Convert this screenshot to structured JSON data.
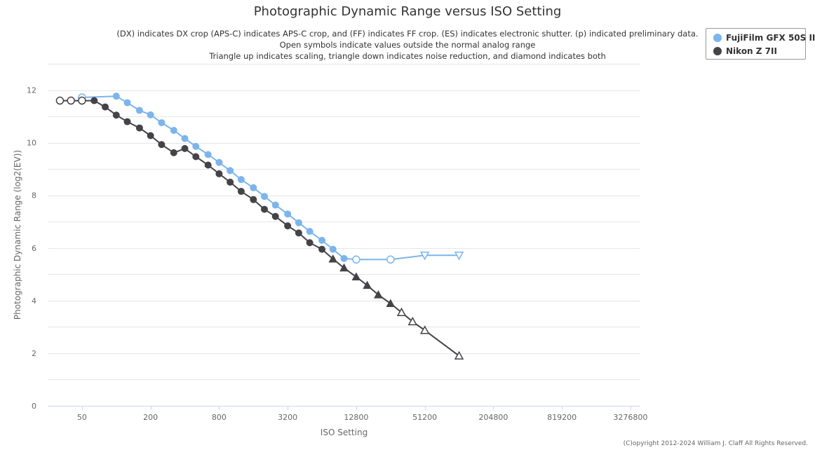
{
  "title": "Photographic Dynamic Range versus ISO Setting",
  "subtitles": [
    "(DX) indicates DX crop (APS-C) indicates APS-C crop, and (FF) indicates FF crop. (ES) indicates electronic shutter. (p) indicated preliminary data.",
    "Open symbols indicate values outside the normal analog range",
    "Triangle up indicates scaling, triangle down indicates noise reduction, and diamond indicates both"
  ],
  "copyright": "(C)opyright 2012-2024 William J. Claff All Rights Reserved.",
  "colors": {
    "fujifilm": "#7cb5ec",
    "nikon": "#434348",
    "grid": "#e6e6e6",
    "axis_text": "#666666"
  },
  "chart_data": {
    "type": "line",
    "title": "Photographic Dynamic Range versus ISO Setting",
    "xlabel": "ISO Setting",
    "ylabel": "Photographic Dynamic Range (log2(EV))",
    "x_scale": "log2",
    "xlim": [
      25,
      4000000
    ],
    "ylim": [
      0,
      13
    ],
    "x_ticks": [
      "50",
      "200",
      "800",
      "3200",
      "12800",
      "51200",
      "204800",
      "819200",
      "3276800"
    ],
    "x_tick_values": [
      50,
      200,
      800,
      3200,
      12800,
      51200,
      204800,
      819200,
      3276800
    ],
    "y_ticks": [
      "0",
      "2",
      "4",
      "6",
      "8",
      "10",
      "12"
    ],
    "y_tick_values": [
      0,
      2,
      4,
      6,
      8,
      10,
      12
    ],
    "grid": true,
    "legend_position": "top-right",
    "series": [
      {
        "name": "FujiFilm GFX 50S II",
        "color": "#7cb5ec",
        "points": [
          {
            "x": 50,
            "y": 11.72,
            "marker": "circle",
            "open": true
          },
          {
            "x": 100,
            "y": 11.77,
            "marker": "circle",
            "open": false
          },
          {
            "x": 125,
            "y": 11.52,
            "marker": "circle",
            "open": false
          },
          {
            "x": 160,
            "y": 11.23,
            "marker": "circle",
            "open": false
          },
          {
            "x": 200,
            "y": 11.06,
            "marker": "circle",
            "open": false
          },
          {
            "x": 250,
            "y": 10.76,
            "marker": "circle",
            "open": false
          },
          {
            "x": 320,
            "y": 10.47,
            "marker": "circle",
            "open": false
          },
          {
            "x": 400,
            "y": 10.16,
            "marker": "circle",
            "open": false
          },
          {
            "x": 500,
            "y": 9.86,
            "marker": "circle",
            "open": false
          },
          {
            "x": 640,
            "y": 9.55,
            "marker": "circle",
            "open": false
          },
          {
            "x": 800,
            "y": 9.25,
            "marker": "circle",
            "open": false
          },
          {
            "x": 1000,
            "y": 8.94,
            "marker": "circle",
            "open": false
          },
          {
            "x": 1250,
            "y": 8.6,
            "marker": "circle",
            "open": false
          },
          {
            "x": 1600,
            "y": 8.29,
            "marker": "circle",
            "open": false
          },
          {
            "x": 2000,
            "y": 7.96,
            "marker": "circle",
            "open": false
          },
          {
            "x": 2500,
            "y": 7.63,
            "marker": "circle",
            "open": false
          },
          {
            "x": 3200,
            "y": 7.29,
            "marker": "circle",
            "open": false
          },
          {
            "x": 4000,
            "y": 6.96,
            "marker": "circle",
            "open": false
          },
          {
            "x": 5000,
            "y": 6.63,
            "marker": "circle",
            "open": false
          },
          {
            "x": 6400,
            "y": 6.29,
            "marker": "circle",
            "open": false
          },
          {
            "x": 8000,
            "y": 5.95,
            "marker": "circle",
            "open": false
          },
          {
            "x": 10000,
            "y": 5.6,
            "marker": "circle",
            "open": false
          },
          {
            "x": 12800,
            "y": 5.56,
            "marker": "circle",
            "open": true
          },
          {
            "x": 25600,
            "y": 5.56,
            "marker": "circle",
            "open": true
          },
          {
            "x": 51200,
            "y": 5.72,
            "marker": "triangle-down",
            "open": true
          },
          {
            "x": 102400,
            "y": 5.72,
            "marker": "triangle-down",
            "open": true
          }
        ]
      },
      {
        "name": "Nikon Z 7II",
        "color": "#434348",
        "points": [
          {
            "x": 32,
            "y": 11.6,
            "marker": "circle",
            "open": true
          },
          {
            "x": 40,
            "y": 11.6,
            "marker": "circle",
            "open": true
          },
          {
            "x": 50,
            "y": 11.6,
            "marker": "circle",
            "open": true
          },
          {
            "x": 64,
            "y": 11.6,
            "marker": "circle",
            "open": false
          },
          {
            "x": 80,
            "y": 11.36,
            "marker": "circle",
            "open": false
          },
          {
            "x": 100,
            "y": 11.05,
            "marker": "circle",
            "open": false
          },
          {
            "x": 125,
            "y": 10.8,
            "marker": "circle",
            "open": false
          },
          {
            "x": 160,
            "y": 10.56,
            "marker": "circle",
            "open": false
          },
          {
            "x": 200,
            "y": 10.27,
            "marker": "circle",
            "open": false
          },
          {
            "x": 250,
            "y": 9.93,
            "marker": "circle",
            "open": false
          },
          {
            "x": 320,
            "y": 9.62,
            "marker": "circle",
            "open": false
          },
          {
            "x": 400,
            "y": 9.78,
            "marker": "circle",
            "open": false
          },
          {
            "x": 500,
            "y": 9.47,
            "marker": "circle",
            "open": false
          },
          {
            "x": 640,
            "y": 9.15,
            "marker": "circle",
            "open": false
          },
          {
            "x": 800,
            "y": 8.82,
            "marker": "circle",
            "open": false
          },
          {
            "x": 1000,
            "y": 8.5,
            "marker": "circle",
            "open": false
          },
          {
            "x": 1250,
            "y": 8.15,
            "marker": "circle",
            "open": false
          },
          {
            "x": 1600,
            "y": 7.84,
            "marker": "circle",
            "open": false
          },
          {
            "x": 2000,
            "y": 7.47,
            "marker": "circle",
            "open": false
          },
          {
            "x": 2500,
            "y": 7.2,
            "marker": "circle",
            "open": false
          },
          {
            "x": 3200,
            "y": 6.84,
            "marker": "circle",
            "open": false
          },
          {
            "x": 4000,
            "y": 6.57,
            "marker": "circle",
            "open": false
          },
          {
            "x": 5000,
            "y": 6.2,
            "marker": "circle",
            "open": false
          },
          {
            "x": 6400,
            "y": 5.95,
            "marker": "circle",
            "open": false
          },
          {
            "x": 8000,
            "y": 5.58,
            "marker": "triangle-up",
            "open": false
          },
          {
            "x": 10000,
            "y": 5.24,
            "marker": "triangle-up",
            "open": false
          },
          {
            "x": 12800,
            "y": 4.9,
            "marker": "triangle-up",
            "open": false
          },
          {
            "x": 16000,
            "y": 4.58,
            "marker": "triangle-up",
            "open": false
          },
          {
            "x": 20000,
            "y": 4.22,
            "marker": "triangle-up",
            "open": false
          },
          {
            "x": 25600,
            "y": 3.89,
            "marker": "triangle-up",
            "open": false
          },
          {
            "x": 32000,
            "y": 3.55,
            "marker": "triangle-up",
            "open": true
          },
          {
            "x": 40000,
            "y": 3.2,
            "marker": "triangle-up",
            "open": true
          },
          {
            "x": 51200,
            "y": 2.87,
            "marker": "triangle-up",
            "open": true
          },
          {
            "x": 102400,
            "y": 1.9,
            "marker": "triangle-up",
            "open": true
          }
        ]
      }
    ]
  }
}
